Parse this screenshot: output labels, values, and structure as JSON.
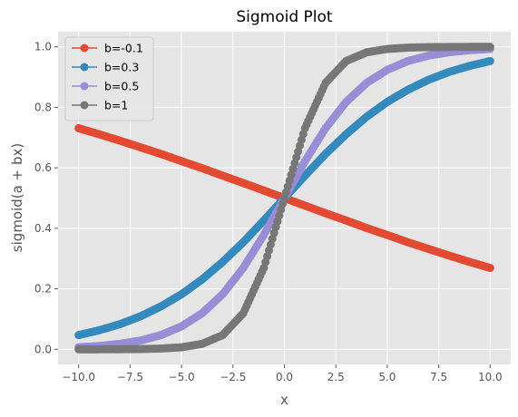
{
  "chart_data": {
    "type": "line",
    "title": "Sigmoid Plot",
    "xlabel": "x",
    "ylabel": "sigmoid(a + bx)",
    "xlim": [
      -11,
      11
    ],
    "ylim": [
      -0.05,
      1.05
    ],
    "xticks": [
      -10.0,
      -7.5,
      -5.0,
      -2.5,
      0.0,
      2.5,
      5.0,
      7.5,
      10.0
    ],
    "xtick_labels": [
      "−10.0",
      "−7.5",
      "−5.0",
      "−2.5",
      "0.0",
      "2.5",
      "5.0",
      "7.5",
      "10.0"
    ],
    "yticks": [
      0.0,
      0.2,
      0.4,
      0.6,
      0.8,
      1.0
    ],
    "ytick_labels": [
      "0.0",
      "0.2",
      "0.4",
      "0.6",
      "0.8",
      "1.0"
    ],
    "grid": true,
    "legend_position": "top-left",
    "x": [
      -10,
      -9,
      -8,
      -7,
      -6,
      -5,
      -4,
      -3,
      -2,
      -1,
      0,
      1,
      2,
      3,
      4,
      5,
      6,
      7,
      8,
      9,
      10
    ],
    "series": [
      {
        "name": "b=-0.1",
        "color": "#E24A33",
        "values": [
          0.731,
          0.711,
          0.69,
          0.668,
          0.646,
          0.622,
          0.599,
          0.574,
          0.55,
          0.525,
          0.5,
          0.475,
          0.45,
          0.426,
          0.401,
          0.378,
          0.354,
          0.332,
          0.31,
          0.289,
          0.269
        ]
      },
      {
        "name": "b=0.3",
        "color": "#348ABD",
        "values": [
          0.047,
          0.063,
          0.083,
          0.109,
          0.142,
          0.182,
          0.231,
          0.289,
          0.354,
          0.426,
          0.5,
          0.574,
          0.646,
          0.711,
          0.769,
          0.818,
          0.858,
          0.891,
          0.917,
          0.937,
          0.953
        ]
      },
      {
        "name": "b=0.5",
        "color": "#988ED5",
        "values": [
          0.007,
          0.011,
          0.018,
          0.029,
          0.047,
          0.076,
          0.119,
          0.182,
          0.269,
          0.378,
          0.5,
          0.622,
          0.731,
          0.818,
          0.881,
          0.924,
          0.953,
          0.971,
          0.982,
          0.989,
          0.993
        ]
      },
      {
        "name": "b=1",
        "color": "#777777",
        "values": [
          0.0,
          0.0,
          0.0003,
          0.0009,
          0.0025,
          0.0067,
          0.018,
          0.047,
          0.119,
          0.269,
          0.5,
          0.731,
          0.881,
          0.953,
          0.982,
          0.993,
          0.9975,
          0.9991,
          0.9997,
          1.0,
          1.0
        ]
      }
    ]
  },
  "style": {
    "plot_background": "#E5E5E5",
    "grid_color": "#FFFFFF"
  }
}
